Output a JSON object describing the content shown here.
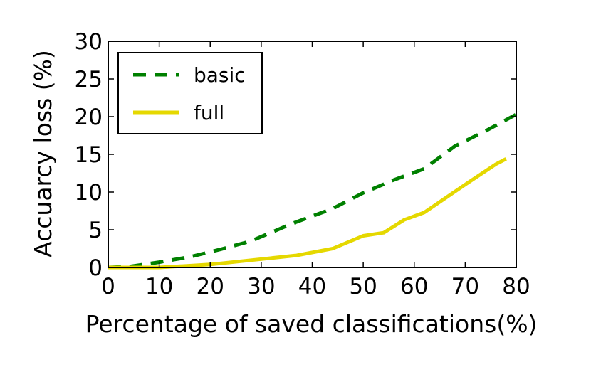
{
  "chart_data": {
    "type": "line",
    "xlabel": "Percentage of saved classifications(%)",
    "ylabel": "Accuarcy loss (%)",
    "xlim": [
      0,
      80
    ],
    "ylim": [
      0,
      30
    ],
    "xticks": [
      "0",
      "10",
      "20",
      "30",
      "40",
      "50",
      "60",
      "70",
      "80"
    ],
    "yticks": [
      "0",
      "5",
      "10",
      "15",
      "20",
      "25",
      "30"
    ],
    "grid": false,
    "legend_position": "top-left",
    "series": [
      {
        "name": "basic",
        "color": "#008000",
        "style": "dashed",
        "x": [
          0,
          4,
          10,
          16,
          22,
          28,
          36,
          44,
          50,
          56,
          62,
          68,
          74,
          80
        ],
        "y": [
          0,
          0.1,
          0.7,
          1.4,
          2.4,
          3.5,
          5.8,
          7.8,
          9.9,
          11.6,
          13.1,
          16.1,
          18.1,
          20.3
        ]
      },
      {
        "name": "full",
        "color": "#e5d800",
        "style": "solid",
        "x": [
          0,
          10,
          20,
          30,
          37,
          44,
          50,
          54,
          58,
          62,
          70,
          76,
          78
        ],
        "y": [
          0,
          0,
          0.4,
          1.1,
          1.6,
          2.5,
          4.2,
          4.6,
          6.3,
          7.3,
          11.0,
          13.7,
          14.4
        ]
      }
    ]
  }
}
